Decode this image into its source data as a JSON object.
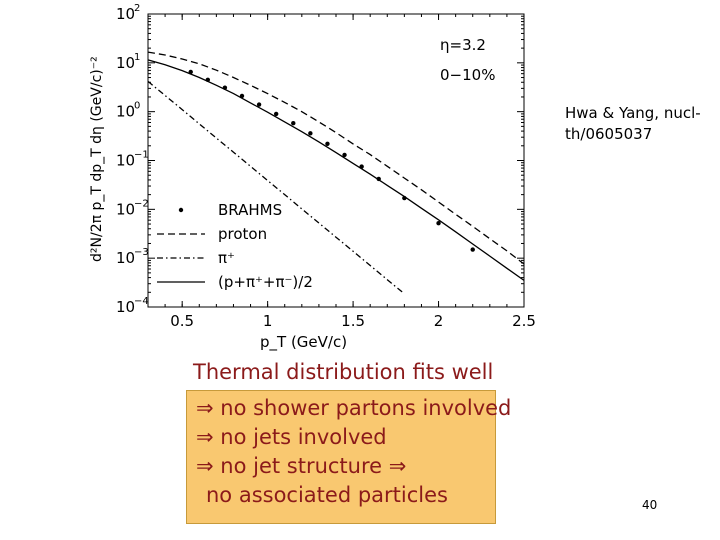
{
  "chart_data": {
    "type": "line",
    "xlabel": "p_T (GeV/c)",
    "ylabel": "d²N/2π p_T dp_T dη (GeV/c)⁻²",
    "xlim": [
      0.3,
      2.5
    ],
    "ylim_log10": [
      -4,
      2
    ],
    "log_y": true,
    "x_ticks": [
      0.5,
      1,
      1.5,
      2,
      2.5
    ],
    "x_tick_labels": [
      "0.5",
      "1",
      "1.5",
      "2",
      "2.5"
    ],
    "y_ticks": [
      -4,
      -3,
      -2,
      -1,
      0,
      1,
      2
    ],
    "annotations": [
      "η=3.2",
      "0−10%"
    ],
    "legend_position": "bottom-left",
    "series": [
      {
        "name": "BRAHMS",
        "style": "points",
        "x": [
          0.55,
          0.65,
          0.75,
          0.85,
          0.95,
          1.05,
          1.15,
          1.25,
          1.35,
          1.45,
          1.55,
          1.65,
          1.8,
          2.0,
          2.2
        ],
        "y": [
          6.5,
          4.5,
          3.1,
          2.1,
          1.4,
          0.9,
          0.58,
          0.36,
          0.22,
          0.13,
          0.075,
          0.042,
          0.017,
          0.0052,
          0.0015
        ]
      },
      {
        "name": "proton",
        "style": "dashed",
        "x": [
          0.3,
          0.4,
          0.5,
          0.6,
          0.7,
          0.8,
          0.9,
          1.0,
          1.1,
          1.2,
          1.3,
          1.4,
          1.5,
          1.6,
          1.7,
          1.8,
          1.9,
          2.0,
          2.1,
          2.2,
          2.3,
          2.4,
          2.5
        ],
        "y": [
          16.6,
          14.5,
          12.0,
          9.55,
          7.08,
          5.01,
          3.47,
          2.34,
          1.55,
          1.0,
          0.617,
          0.372,
          0.219,
          0.132,
          0.0759,
          0.0437,
          0.0251,
          0.0141,
          0.0079,
          0.0045,
          0.0025,
          0.00141,
          0.00076
        ]
      },
      {
        "name": "π⁺",
        "style": "dashdot",
        "x": [
          0.3,
          0.4,
          0.5,
          0.6,
          0.7,
          0.8,
          0.9,
          1.0,
          1.1,
          1.2,
          1.3,
          1.4,
          1.5,
          1.6,
          1.7,
          1.8,
          1.9,
          2.0,
          2.1,
          2.2
        ],
        "y": [
          4.17,
          2.14,
          1.1,
          0.562,
          0.288,
          0.148,
          0.0759,
          0.0389,
          0.02,
          0.0102,
          0.00525,
          0.00269,
          0.00138,
          0.000708,
          0.000363,
          0.000186,
          9.55e-05,
          4.9e-05,
          2.51e-05,
          1.29e-05
        ]
      },
      {
        "name": "(p+π⁺+π⁻)/2",
        "style": "solid",
        "x": [
          0.3,
          0.4,
          0.5,
          0.6,
          0.7,
          0.8,
          0.9,
          1.0,
          1.1,
          1.2,
          1.3,
          1.4,
          1.5,
          1.6,
          1.7,
          1.8,
          1.9,
          2.0,
          2.1,
          2.2,
          2.3,
          2.4,
          2.5
        ],
        "y": [
          11.5,
          9.12,
          6.92,
          5.01,
          3.47,
          2.34,
          1.51,
          0.977,
          0.617,
          0.389,
          0.24,
          0.145,
          0.0871,
          0.0525,
          0.0309,
          0.0182,
          0.0105,
          0.0061,
          0.00347,
          0.00195,
          0.0011,
          0.00062,
          0.00035
        ]
      }
    ]
  },
  "citation": "Hwa & Yang, nucl-th/0605037",
  "headline": "Thermal distribution fits well",
  "box_lines": [
    "⇒ no shower partons involved",
    "⇒ no jets involved",
    "⇒ no jet structure              ⇒",
    "no associated particles"
  ],
  "page_number": "40"
}
